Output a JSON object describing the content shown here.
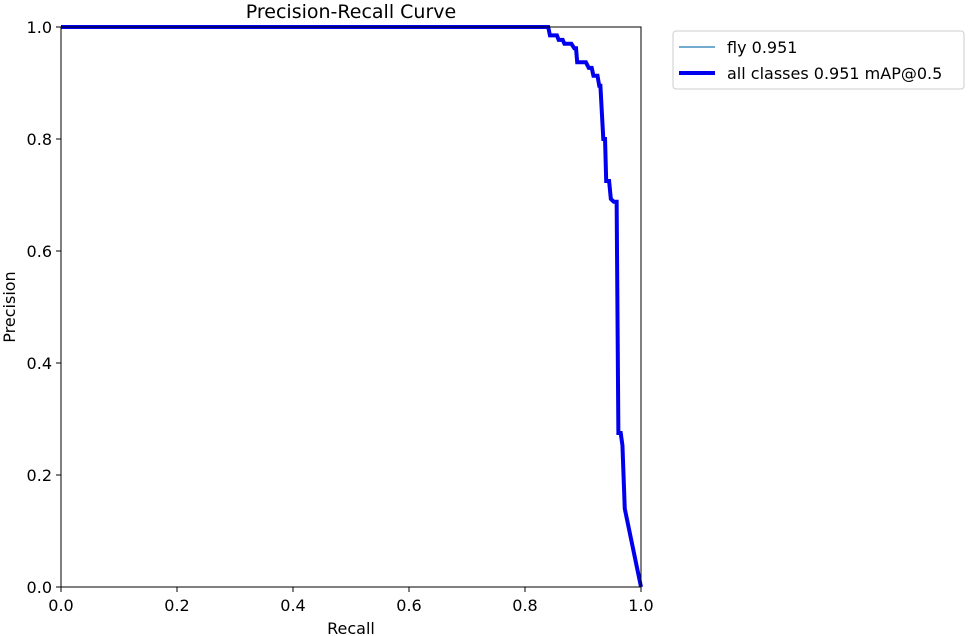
{
  "chart_data": {
    "type": "line",
    "title": "Precision-Recall Curve",
    "xlabel": "Recall",
    "ylabel": "Precision",
    "xlim": [
      0.0,
      1.0
    ],
    "ylim": [
      0.0,
      1.0
    ],
    "x_ticks": [
      "0.0",
      "0.2",
      "0.4",
      "0.6",
      "0.8",
      "1.0"
    ],
    "y_ticks": [
      "0.0",
      "0.2",
      "0.4",
      "0.6",
      "0.8",
      "1.0"
    ],
    "grid": false,
    "legend_placement": "outside-top-right",
    "series": [
      {
        "name": "fly 0.951",
        "color": "#1f77b4",
        "style": "thin",
        "x": [
          0.0,
          0.84,
          0.843,
          0.855,
          0.858,
          0.865,
          0.868,
          0.88,
          0.885,
          0.888,
          0.89,
          0.905,
          0.91,
          0.915,
          0.918,
          0.925,
          0.928,
          0.93,
          0.935,
          0.938,
          0.94,
          0.945,
          0.948,
          0.953,
          0.958,
          0.961,
          0.965,
          0.968,
          0.972,
          1.0
        ],
        "y": [
          1.0,
          1.0,
          0.985,
          0.985,
          0.977,
          0.977,
          0.97,
          0.97,
          0.962,
          0.962,
          0.937,
          0.937,
          0.927,
          0.927,
          0.913,
          0.913,
          0.895,
          0.895,
          0.8,
          0.8,
          0.725,
          0.725,
          0.693,
          0.688,
          0.688,
          0.275,
          0.275,
          0.253,
          0.14,
          0.0
        ]
      },
      {
        "name": "all classes 0.951 mAP@0.5",
        "color": "#0000ee",
        "style": "thick",
        "x": [
          0.0,
          0.84,
          0.843,
          0.855,
          0.858,
          0.865,
          0.868,
          0.88,
          0.885,
          0.888,
          0.89,
          0.905,
          0.91,
          0.915,
          0.918,
          0.925,
          0.928,
          0.93,
          0.935,
          0.938,
          0.94,
          0.945,
          0.948,
          0.953,
          0.958,
          0.961,
          0.965,
          0.968,
          0.972,
          1.0
        ],
        "y": [
          1.0,
          1.0,
          0.985,
          0.985,
          0.977,
          0.977,
          0.97,
          0.97,
          0.962,
          0.962,
          0.937,
          0.937,
          0.927,
          0.927,
          0.913,
          0.913,
          0.895,
          0.895,
          0.8,
          0.8,
          0.725,
          0.725,
          0.693,
          0.688,
          0.688,
          0.275,
          0.275,
          0.253,
          0.14,
          0.0
        ]
      }
    ]
  }
}
